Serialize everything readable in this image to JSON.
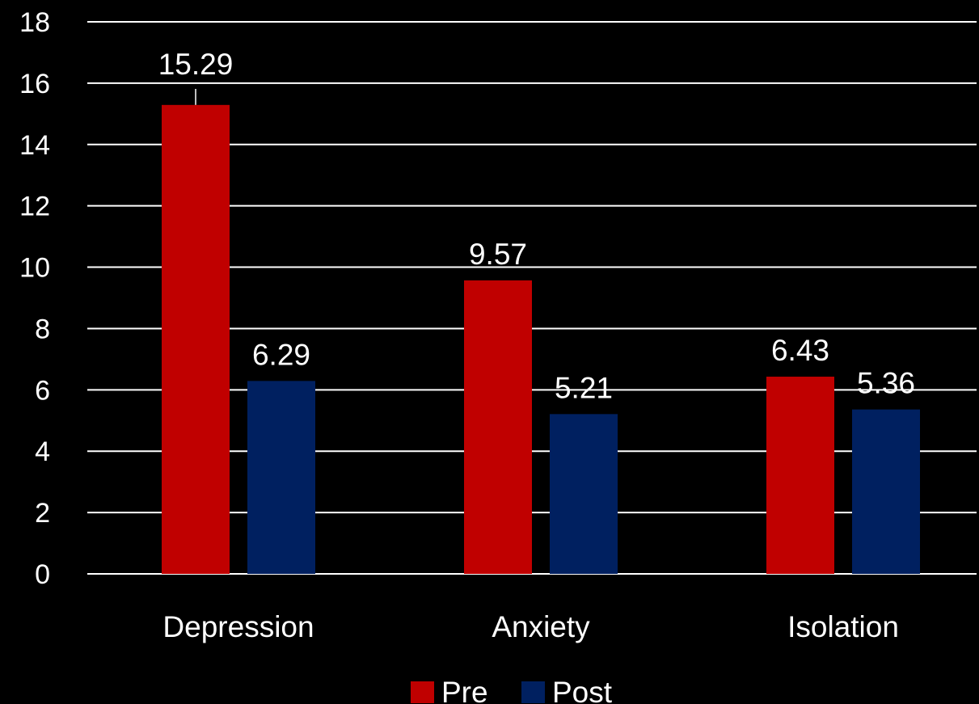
{
  "chart_data": {
    "type": "bar",
    "categories": [
      "Depression",
      "Anxiety",
      "Isolation"
    ],
    "series": [
      {
        "name": "Pre",
        "values": [
          15.29,
          9.57,
          6.43
        ],
        "color": "#C00000"
      },
      {
        "name": "Post",
        "values": [
          6.29,
          5.21,
          5.36
        ],
        "color": "#002060"
      }
    ],
    "data_labels": [
      [
        "15.29",
        "9.57",
        "6.43"
      ],
      [
        "6.29",
        "5.21",
        "5.36"
      ]
    ],
    "yticks": [
      "0",
      "2",
      "4",
      "6",
      "8",
      "10",
      "12",
      "14",
      "16",
      "18"
    ],
    "ylim": [
      0,
      18
    ],
    "grid": true,
    "gridline_color": "#ffffff",
    "legend_position": "bottom",
    "background": "#000000",
    "text_color": "#ffffff"
  }
}
